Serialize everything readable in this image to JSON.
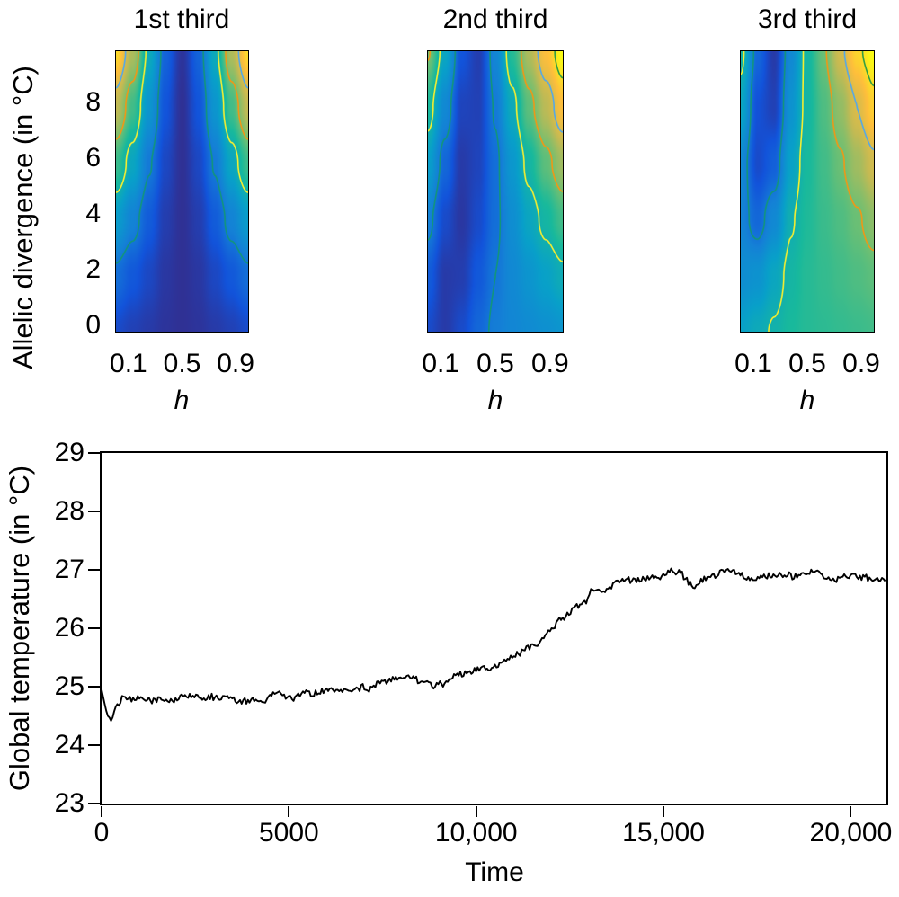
{
  "chart_data": [
    {
      "type": "heatmap",
      "title": "1st third",
      "xlabel": "h",
      "ylabel": "Allelic divergence (in °C)",
      "x_range": [
        0,
        1
      ],
      "y_range": [
        0,
        10
      ],
      "x_tick_labels": [
        "0.1",
        "0.5",
        "0.9"
      ],
      "x_tick_values": [
        0.1,
        0.5,
        0.9
      ],
      "y_tick_values": [
        0,
        2,
        4,
        6,
        8
      ],
      "colormap": "parula",
      "value_scale": "normalized 0-1 (dark blue = low, yellow = high)",
      "values_rows_y": [
        0,
        2,
        4,
        6,
        8,
        10
      ],
      "values_cols_x": [
        0,
        0.125,
        0.25,
        0.375,
        0.5,
        0.625,
        0.75,
        0.875,
        1
      ],
      "values": [
        [
          0.1,
          0.07,
          0.05,
          0.03,
          0.02,
          0.03,
          0.05,
          0.07,
          0.1
        ],
        [
          0.2,
          0.14,
          0.09,
          0.04,
          0.02,
          0.04,
          0.09,
          0.14,
          0.2
        ],
        [
          0.36,
          0.26,
          0.15,
          0.06,
          0.02,
          0.06,
          0.15,
          0.26,
          0.36
        ],
        [
          0.55,
          0.4,
          0.23,
          0.09,
          0.02,
          0.09,
          0.23,
          0.4,
          0.55
        ],
        [
          0.75,
          0.56,
          0.33,
          0.13,
          0.02,
          0.13,
          0.33,
          0.56,
          0.75
        ],
        [
          0.93,
          0.72,
          0.42,
          0.17,
          0.03,
          0.17,
          0.42,
          0.72,
          0.93
        ]
      ],
      "contour_levels": [
        0.22,
        0.45,
        0.63,
        0.8,
        0.94
      ],
      "contour_colors": [
        "#12957c",
        "#f5ee30",
        "#f09716",
        "#56a8e6",
        "#2f9e44"
      ]
    },
    {
      "type": "heatmap",
      "title": "2nd third",
      "xlabel": "h",
      "ylabel": "",
      "x_range": [
        0,
        1
      ],
      "y_range": [
        0,
        10
      ],
      "x_tick_labels": [
        "0.1",
        "0.5",
        "0.9"
      ],
      "x_tick_values": [
        0.1,
        0.5,
        0.9
      ],
      "y_tick_values": [
        0,
        2,
        4,
        6,
        8
      ],
      "colormap": "parula",
      "value_scale": "normalized 0-1 (dark blue = low, yellow = high)",
      "values_rows_y": [
        0,
        2,
        4,
        6,
        8,
        10
      ],
      "values_cols_x": [
        0,
        0.125,
        0.25,
        0.375,
        0.5,
        0.625,
        0.75,
        0.875,
        1
      ],
      "values": [
        [
          0.1,
          0.05,
          0.1,
          0.18,
          0.24,
          0.27,
          0.29,
          0.31,
          0.33
        ],
        [
          0.15,
          0.05,
          0.06,
          0.14,
          0.22,
          0.28,
          0.33,
          0.38,
          0.43
        ],
        [
          0.25,
          0.1,
          0.04,
          0.1,
          0.2,
          0.3,
          0.4,
          0.48,
          0.56
        ],
        [
          0.37,
          0.18,
          0.05,
          0.08,
          0.2,
          0.34,
          0.48,
          0.6,
          0.7
        ],
        [
          0.5,
          0.28,
          0.08,
          0.07,
          0.23,
          0.42,
          0.6,
          0.74,
          0.87
        ],
        [
          0.64,
          0.4,
          0.13,
          0.06,
          0.27,
          0.52,
          0.72,
          0.87,
          1.0
        ]
      ],
      "contour_levels": [
        0.22,
        0.45,
        0.63,
        0.8,
        0.94
      ],
      "contour_colors": [
        "#12957c",
        "#f5ee30",
        "#f09716",
        "#56a8e6",
        "#2f9e44"
      ]
    },
    {
      "type": "heatmap",
      "title": "3rd third",
      "xlabel": "h",
      "ylabel": "",
      "x_range": [
        0,
        1
      ],
      "y_range": [
        0,
        10
      ],
      "x_tick_labels": [
        "0.1",
        "0.5",
        "0.9"
      ],
      "x_tick_values": [
        0.1,
        0.5,
        0.9
      ],
      "y_tick_values": [
        0,
        2,
        4,
        6,
        8
      ],
      "colormap": "parula",
      "value_scale": "normalized 0-1 (dark blue = low, yellow = high)",
      "values_rows_y": [
        0,
        2,
        4,
        6,
        8,
        10
      ],
      "values_cols_x": [
        0,
        0.125,
        0.25,
        0.375,
        0.5,
        0.625,
        0.75,
        0.875,
        1
      ],
      "values": [
        [
          0.38,
          0.42,
          0.46,
          0.5,
          0.52,
          0.53,
          0.54,
          0.55,
          0.56
        ],
        [
          0.3,
          0.32,
          0.4,
          0.48,
          0.52,
          0.54,
          0.56,
          0.58,
          0.6
        ],
        [
          0.26,
          0.18,
          0.28,
          0.44,
          0.51,
          0.55,
          0.58,
          0.62,
          0.67
        ],
        [
          0.28,
          0.1,
          0.16,
          0.38,
          0.5,
          0.56,
          0.62,
          0.7,
          0.78
        ],
        [
          0.4,
          0.12,
          0.07,
          0.32,
          0.48,
          0.58,
          0.68,
          0.8,
          0.91
        ],
        [
          0.48,
          0.18,
          0.05,
          0.28,
          0.48,
          0.62,
          0.78,
          0.92,
          1.0
        ]
      ],
      "contour_levels": [
        0.22,
        0.45,
        0.63,
        0.8,
        0.94
      ],
      "contour_colors": [
        "#12957c",
        "#f5ee30",
        "#f09716",
        "#56a8e6",
        "#2f9e44"
      ]
    },
    {
      "type": "line",
      "title": "",
      "xlabel": "Time",
      "ylabel": "Global temperature (in °C)",
      "xlim": [
        0,
        20950
      ],
      "ylim": [
        23,
        29
      ],
      "x_tick_labels": [
        "0",
        "5000",
        "10,000",
        "15,000",
        "20,000"
      ],
      "x_tick_values": [
        0,
        5000,
        10000,
        15000,
        20000
      ],
      "y_tick_values": [
        23,
        24,
        25,
        26,
        27,
        28,
        29
      ],
      "line_color": "#000000",
      "noise_amplitude": 0.06,
      "grid": "off",
      "points": [
        [
          0,
          24.95
        ],
        [
          120,
          24.6
        ],
        [
          250,
          24.38
        ],
        [
          400,
          24.72
        ],
        [
          550,
          24.82
        ],
        [
          800,
          24.78
        ],
        [
          1100,
          24.75
        ],
        [
          1400,
          24.8
        ],
        [
          1700,
          24.78
        ],
        [
          2000,
          24.77
        ],
        [
          2300,
          24.8
        ],
        [
          2600,
          24.78
        ],
        [
          2900,
          24.8
        ],
        [
          3200,
          24.78
        ],
        [
          3500,
          24.82
        ],
        [
          3800,
          24.78
        ],
        [
          4100,
          24.8
        ],
        [
          4400,
          24.82
        ],
        [
          4700,
          24.8
        ],
        [
          5000,
          24.83
        ],
        [
          5300,
          24.8
        ],
        [
          5600,
          24.85
        ],
        [
          5900,
          24.88
        ],
        [
          6200,
          24.9
        ],
        [
          6500,
          24.93
        ],
        [
          6800,
          24.95
        ],
        [
          7100,
          25.0
        ],
        [
          7400,
          25.05
        ],
        [
          7700,
          25.12
        ],
        [
          8000,
          25.2
        ],
        [
          8300,
          25.22
        ],
        [
          8600,
          25.1
        ],
        [
          8900,
          25.0
        ],
        [
          9200,
          25.08
        ],
        [
          9500,
          25.18
        ],
        [
          9800,
          25.22
        ],
        [
          10100,
          25.25
        ],
        [
          10400,
          25.28
        ],
        [
          10700,
          25.4
        ],
        [
          11000,
          25.5
        ],
        [
          11300,
          25.62
        ],
        [
          11600,
          25.77
        ],
        [
          11900,
          25.92
        ],
        [
          12200,
          26.08
        ],
        [
          12500,
          26.2
        ],
        [
          12800,
          26.42
        ],
        [
          13100,
          26.62
        ],
        [
          13400,
          26.72
        ],
        [
          13700,
          26.85
        ],
        [
          14000,
          26.88
        ],
        [
          14300,
          26.85
        ],
        [
          14600,
          26.9
        ],
        [
          14900,
          26.93
        ],
        [
          15200,
          27.0
        ],
        [
          15500,
          26.9
        ],
        [
          15800,
          26.7
        ],
        [
          16100,
          26.85
        ],
        [
          16400,
          26.95
        ],
        [
          16700,
          27.0
        ],
        [
          17000,
          26.95
        ],
        [
          17300,
          26.8
        ],
        [
          17600,
          26.9
        ],
        [
          17900,
          27.0
        ],
        [
          18200,
          26.92
        ],
        [
          18500,
          26.85
        ],
        [
          18800,
          26.9
        ],
        [
          19100,
          27.0
        ],
        [
          19400,
          26.8
        ],
        [
          19700,
          26.85
        ],
        [
          20000,
          26.9
        ],
        [
          20300,
          26.9
        ],
        [
          20600,
          26.85
        ],
        [
          20950,
          26.85
        ]
      ]
    }
  ]
}
